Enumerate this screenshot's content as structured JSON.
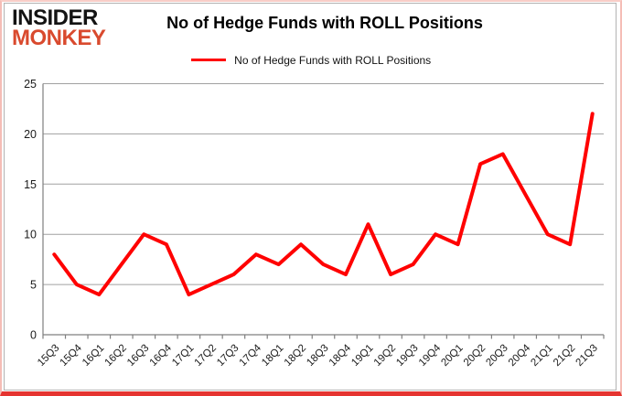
{
  "logo": {
    "line1": "INSIDER",
    "line2": "MONKEY"
  },
  "header": {
    "title": "No of Hedge Funds with ROLL Positions"
  },
  "legend": {
    "label": "No of Hedge Funds with ROLL Positions",
    "line_color": "#ff0000"
  },
  "chart_data": {
    "type": "line",
    "title": "No of Hedge Funds with ROLL Positions",
    "categories": [
      "15Q3",
      "15Q4",
      "16Q1",
      "16Q2",
      "16Q3",
      "16Q4",
      "17Q1",
      "17Q2",
      "17Q3",
      "17Q4",
      "18Q1",
      "18Q2",
      "18Q3",
      "18Q4",
      "19Q1",
      "19Q2",
      "19Q3",
      "19Q4",
      "20Q1",
      "20Q2",
      "20Q3",
      "20Q4",
      "21Q1",
      "21Q2",
      "21Q3"
    ],
    "series": [
      {
        "name": "No of Hedge Funds with ROLL Positions",
        "color": "#ff0000",
        "values": [
          8,
          5,
          4,
          7,
          10,
          9,
          4,
          5,
          6,
          8,
          7,
          9,
          7,
          6,
          11,
          6,
          7,
          10,
          9,
          17,
          18,
          14,
          10,
          9,
          22
        ]
      }
    ],
    "xlabel": "",
    "ylabel": "",
    "ylim": [
      0,
      25
    ],
    "yticks": [
      0,
      5,
      10,
      15,
      20,
      25
    ],
    "grid": "horizontal",
    "legend_position": "top",
    "x_label_rotation": -45
  },
  "colors": {
    "line": "#ff0000",
    "grid": "#a0a0a0",
    "axis": "#7f7f7f",
    "text": "#1a1a1a",
    "logo_black": "#131313",
    "logo_red": "#d94a2e",
    "border_pink": "#f5bdb6",
    "border_bottom_red": "#e53430"
  }
}
